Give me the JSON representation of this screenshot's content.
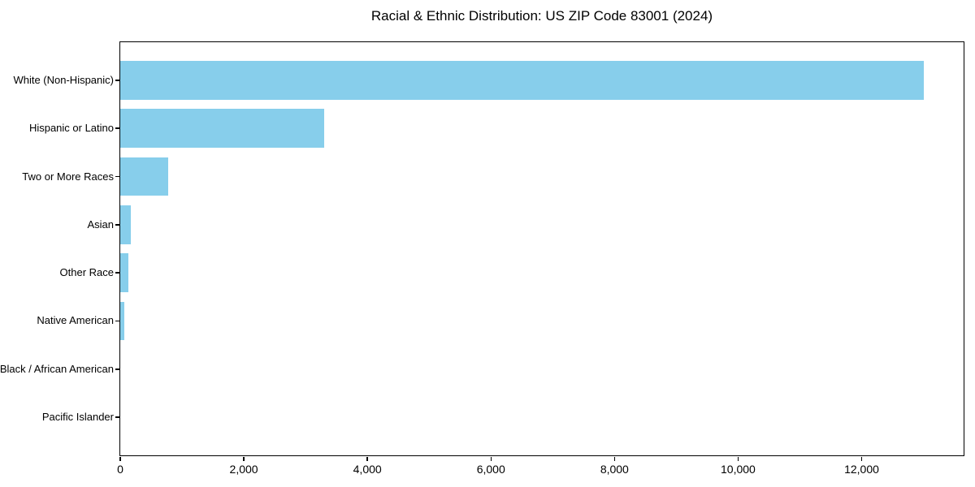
{
  "chart_data": {
    "type": "bar",
    "orientation": "horizontal",
    "title": "Racial & Ethnic Distribution: US ZIP Code 83001 (2024)",
    "categories": [
      "White (Non-Hispanic)",
      "Hispanic or Latino",
      "Two or More Races",
      "Asian",
      "Other Race",
      "Native American",
      "Black / African American",
      "Pacific Islander"
    ],
    "values": [
      13000,
      3300,
      780,
      165,
      135,
      60,
      0,
      0
    ],
    "xlabel": "",
    "ylabel": "",
    "xlim": [
      0,
      13650
    ],
    "x_ticks": [
      0,
      2000,
      4000,
      6000,
      8000,
      10000,
      12000
    ],
    "x_tick_labels": [
      "0",
      "2,000",
      "4,000",
      "6,000",
      "8,000",
      "10,000",
      "12,000"
    ],
    "bar_color": "#87CEEB",
    "axis_color": "#000000",
    "background_color": "#ffffff",
    "grid": false,
    "legend": null
  }
}
